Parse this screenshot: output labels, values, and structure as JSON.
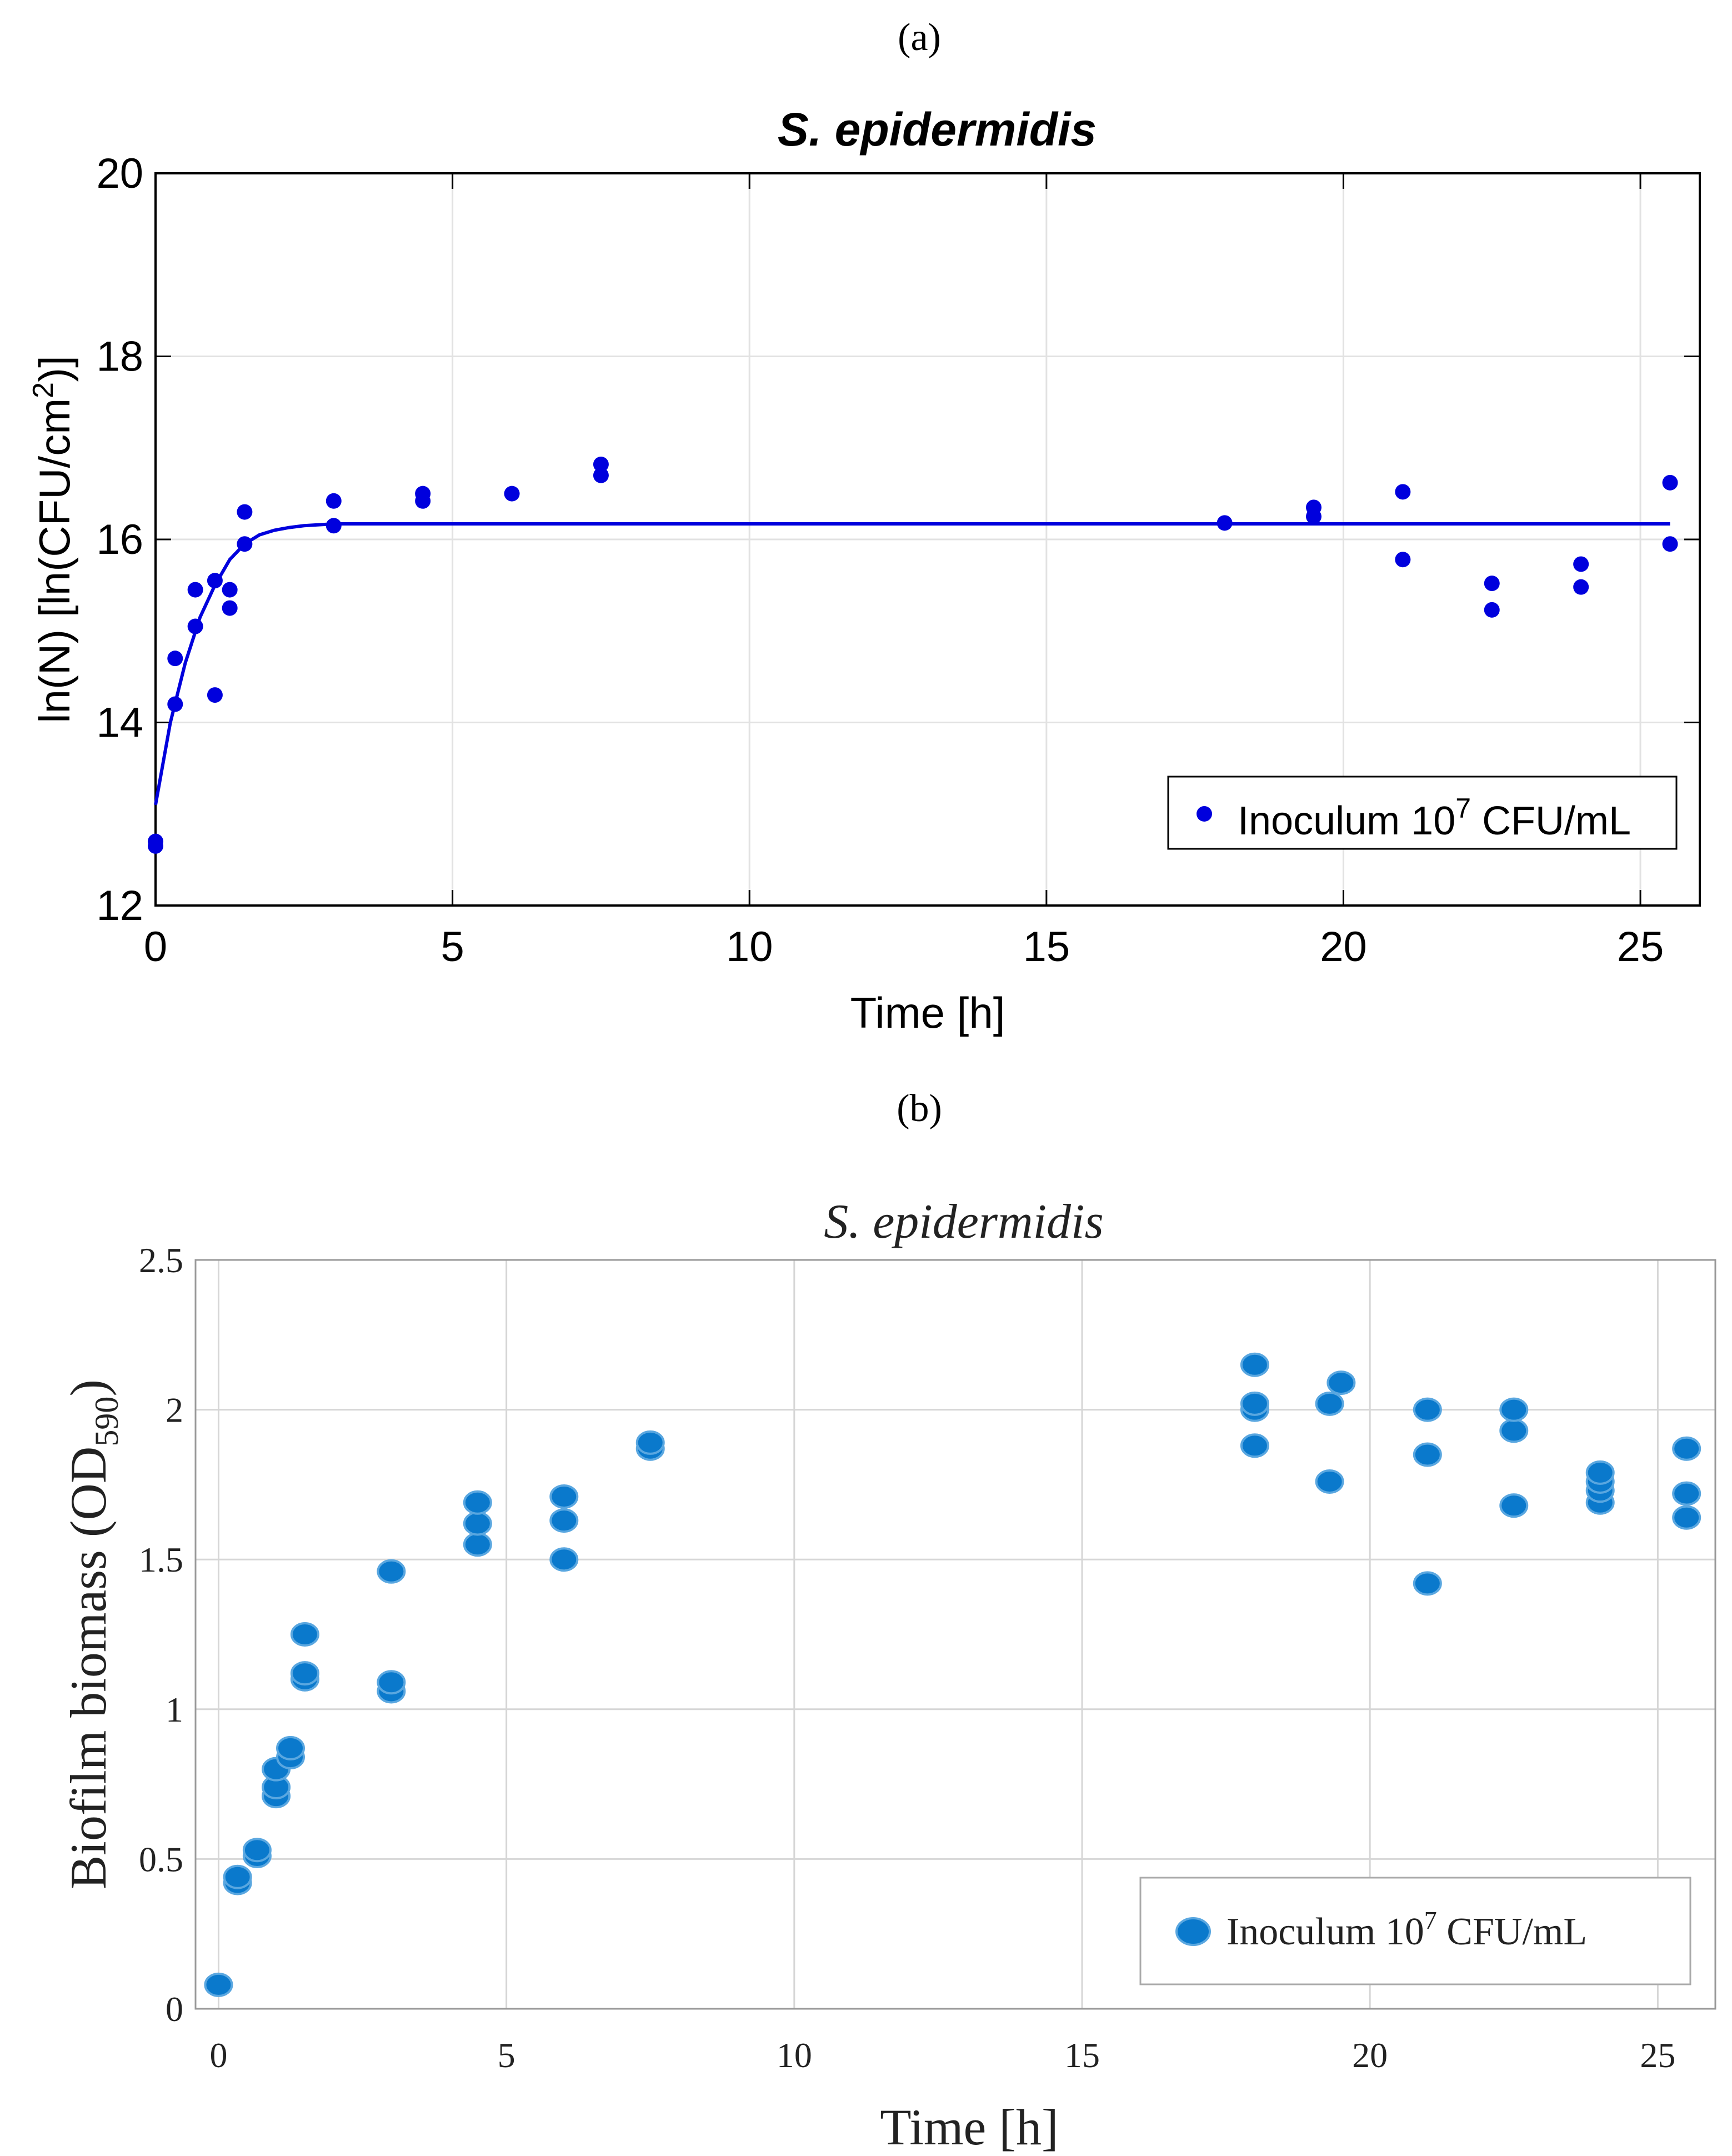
{
  "panel_a_label": "(a)",
  "panel_b_label": "(b)",
  "chart_data": [
    {
      "type": "scatter",
      "title": "S. epidermidis",
      "xlabel": "Time [h]",
      "ylabel_main": "ln(N) [ln(CFU/cm",
      "ylabel_sup": "2",
      "ylabel_end": ")]",
      "xlim": [
        0,
        26
      ],
      "ylim": [
        12,
        20
      ],
      "xticks": [
        0,
        5,
        10,
        15,
        20,
        25
      ],
      "yticks": [
        12,
        14,
        16,
        18,
        20
      ],
      "grid": true,
      "legend_position": "bottom-right",
      "color": "#0000dd",
      "series": [
        {
          "name": "Inoculum 10^7 CFU/mL",
          "legend_prefix": "Inoculum 10",
          "legend_sup": "7",
          "legend_suffix": " CFU/mL",
          "points": [
            [
              0,
              12.65
            ],
            [
              0,
              12.7
            ],
            [
              0.33,
              14.2
            ],
            [
              0.33,
              14.7
            ],
            [
              0.67,
              15.05
            ],
            [
              0.67,
              15.45
            ],
            [
              1,
              14.3
            ],
            [
              1,
              15.55
            ],
            [
              1.25,
              15.25
            ],
            [
              1.25,
              15.45
            ],
            [
              1.5,
              15.95
            ],
            [
              1.5,
              16.3
            ],
            [
              3,
              16.15
            ],
            [
              3,
              16.42
            ],
            [
              4.5,
              16.42
            ],
            [
              4.5,
              16.5
            ],
            [
              6,
              16.5
            ],
            [
              7.5,
              16.7
            ],
            [
              7.5,
              16.82
            ],
            [
              18,
              16.18
            ],
            [
              19.5,
              16.25
            ],
            [
              19.5,
              16.35
            ],
            [
              21,
              15.78
            ],
            [
              21,
              16.52
            ],
            [
              22.5,
              15.23
            ],
            [
              22.5,
              15.52
            ],
            [
              24,
              15.48
            ],
            [
              24,
              15.73
            ],
            [
              25.5,
              15.95
            ],
            [
              25.5,
              16.62
            ]
          ]
        }
      ],
      "fit_curve": {
        "name": "fit",
        "x": [
          0,
          0.25,
          0.5,
          0.75,
          1,
          1.25,
          1.5,
          1.75,
          2,
          2.25,
          2.5,
          3,
          4,
          6,
          10,
          15,
          20,
          25.5
        ],
        "y": [
          13.1,
          14.0,
          14.65,
          15.15,
          15.5,
          15.78,
          15.95,
          16.05,
          16.1,
          16.13,
          16.15,
          16.17,
          16.17,
          16.17,
          16.17,
          16.17,
          16.17,
          16.17
        ]
      }
    },
    {
      "type": "scatter",
      "title": "S. epidermidis",
      "xlabel": "Time [h]",
      "ylabel_main": "Biofilm biomass (OD",
      "ylabel_sub": "590",
      "ylabel_end": ")",
      "xlim": [
        -0.4,
        26
      ],
      "ylim": [
        0,
        2.5
      ],
      "xticks": [
        0,
        5,
        10,
        15,
        20,
        25
      ],
      "xtick_labels": [
        "0",
        "5",
        "10",
        "15",
        "20",
        "25"
      ],
      "yticks": [
        0,
        0.5,
        1,
        1.5,
        2,
        2.5
      ],
      "ytick_labels": [
        "0",
        "0.5",
        "1",
        "1.5",
        "2",
        "2.5"
      ],
      "grid": true,
      "legend_position": "bottom-right",
      "color": "#0a79cc",
      "series": [
        {
          "name": "Inoculum 10^7 CFU/mL",
          "legend_prefix": "Inoculum 10",
          "legend_sup": "7",
          "legend_suffix": " CFU/mL",
          "points": [
            [
              0,
              0.08
            ],
            [
              0.33,
              0.42
            ],
            [
              0.33,
              0.44
            ],
            [
              0.67,
              0.51
            ],
            [
              0.67,
              0.53
            ],
            [
              1,
              0.71
            ],
            [
              1,
              0.74
            ],
            [
              1,
              0.8
            ],
            [
              1.25,
              0.84
            ],
            [
              1.25,
              0.87
            ],
            [
              1.5,
              1.1
            ],
            [
              1.5,
              1.12
            ],
            [
              1.5,
              1.25
            ],
            [
              3,
              1.06
            ],
            [
              3,
              1.09
            ],
            [
              3,
              1.46
            ],
            [
              4.5,
              1.55
            ],
            [
              4.5,
              1.62
            ],
            [
              4.5,
              1.69
            ],
            [
              6,
              1.5
            ],
            [
              6,
              1.63
            ],
            [
              6,
              1.71
            ],
            [
              7.5,
              1.87
            ],
            [
              7.5,
              1.89
            ],
            [
              18,
              1.88
            ],
            [
              18,
              2.0
            ],
            [
              18,
              2.02
            ],
            [
              18,
              2.15
            ],
            [
              19.3,
              1.76
            ],
            [
              19.3,
              2.02
            ],
            [
              19.5,
              2.09
            ],
            [
              21,
              1.42
            ],
            [
              21,
              1.85
            ],
            [
              21,
              2.0
            ],
            [
              22.5,
              1.68
            ],
            [
              22.5,
              1.93
            ],
            [
              22.5,
              2.0
            ],
            [
              24,
              1.69
            ],
            [
              24,
              1.73
            ],
            [
              24,
              1.76
            ],
            [
              24,
              1.79
            ],
            [
              25.5,
              1.64
            ],
            [
              25.5,
              1.72
            ],
            [
              25.5,
              1.87
            ]
          ]
        }
      ]
    }
  ]
}
